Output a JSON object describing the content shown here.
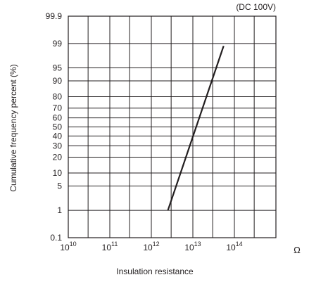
{
  "chart_data": {
    "type": "line",
    "title": "",
    "annotation": "(DC 100V)",
    "xlabel": "Insulation resistance",
    "ylabel": "Cumulative frequency percent (%)",
    "x_scale": "log",
    "y_scale": "probability",
    "xlim": [
      10000000000.0,
      1000000000000000.0
    ],
    "x_ticks": [
      {
        "value": 10000000000.0,
        "base": "10",
        "exp": "10"
      },
      {
        "value": 100000000000.0,
        "base": "10",
        "exp": "11"
      },
      {
        "value": 1000000000000.0,
        "base": "10",
        "exp": "12"
      },
      {
        "value": 10000000000000.0,
        "base": "10",
        "exp": "13"
      },
      {
        "value": 100000000000000.0,
        "base": "10",
        "exp": "14"
      }
    ],
    "x_unit": "Ω",
    "y_ticks": [
      "0.1",
      "1",
      "5",
      "10",
      "20",
      "30",
      "40",
      "50",
      "60",
      "70",
      "80",
      "90",
      "95",
      "99",
      "99.9"
    ],
    "grid": true,
    "series": [
      {
        "x": [
          2500000000000.0,
          55000000000000.0
        ],
        "y": [
          1,
          98.8
        ]
      }
    ]
  }
}
